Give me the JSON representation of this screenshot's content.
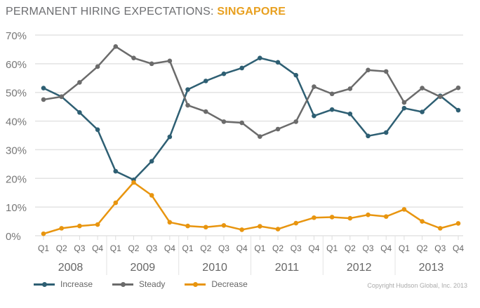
{
  "title": {
    "prefix": "PERMANENT HIRING EXPECTATIONS: ",
    "highlight": "SINGAPORE"
  },
  "copyright": "Copyright Hudson Global, Inc. 2013",
  "chart_data": {
    "type": "line",
    "title": "PERMANENT HIRING EXPECTATIONS: SINGAPORE",
    "quarters": [
      "Q1",
      "Q2",
      "Q3",
      "Q4"
    ],
    "years": [
      "2008",
      "2009",
      "2010",
      "2011",
      "2012",
      "2013"
    ],
    "yticks": [
      "0%",
      "10%",
      "20%",
      "30%",
      "40%",
      "50%",
      "60%",
      "70%"
    ],
    "ylim": [
      0,
      70
    ],
    "grid": true,
    "legend_position": "bottom-left",
    "series": [
      {
        "name": "Increase",
        "color": "#2e5f73",
        "values": [
          51.5,
          48.5,
          43,
          37,
          22.5,
          19.5,
          26,
          34.5,
          51,
          54,
          56.5,
          58.5,
          62,
          60.5,
          56,
          41.8,
          44,
          42.5,
          34.8,
          36,
          44.5,
          43.2,
          48.8,
          43.8
        ]
      },
      {
        "name": "Steady",
        "color": "#6b6b6b",
        "values": [
          47.5,
          48.5,
          53.5,
          59,
          66,
          62,
          60,
          61,
          45.5,
          43.3,
          39.8,
          39.4,
          34.6,
          37.2,
          39.8,
          52,
          49.5,
          51.3,
          57.8,
          57.3,
          46.5,
          51.5,
          48.5,
          51.6
        ]
      },
      {
        "name": "Decrease",
        "color": "#e8950f",
        "values": [
          0.7,
          2.6,
          3.4,
          3.9,
          11.5,
          18.6,
          14.1,
          4.7,
          3.4,
          3.0,
          3.6,
          2.1,
          3.3,
          2.3,
          4.4,
          6.3,
          6.5,
          6.1,
          7.3,
          6.7,
          9.2,
          5.0,
          2.6,
          4.3
        ]
      }
    ]
  }
}
